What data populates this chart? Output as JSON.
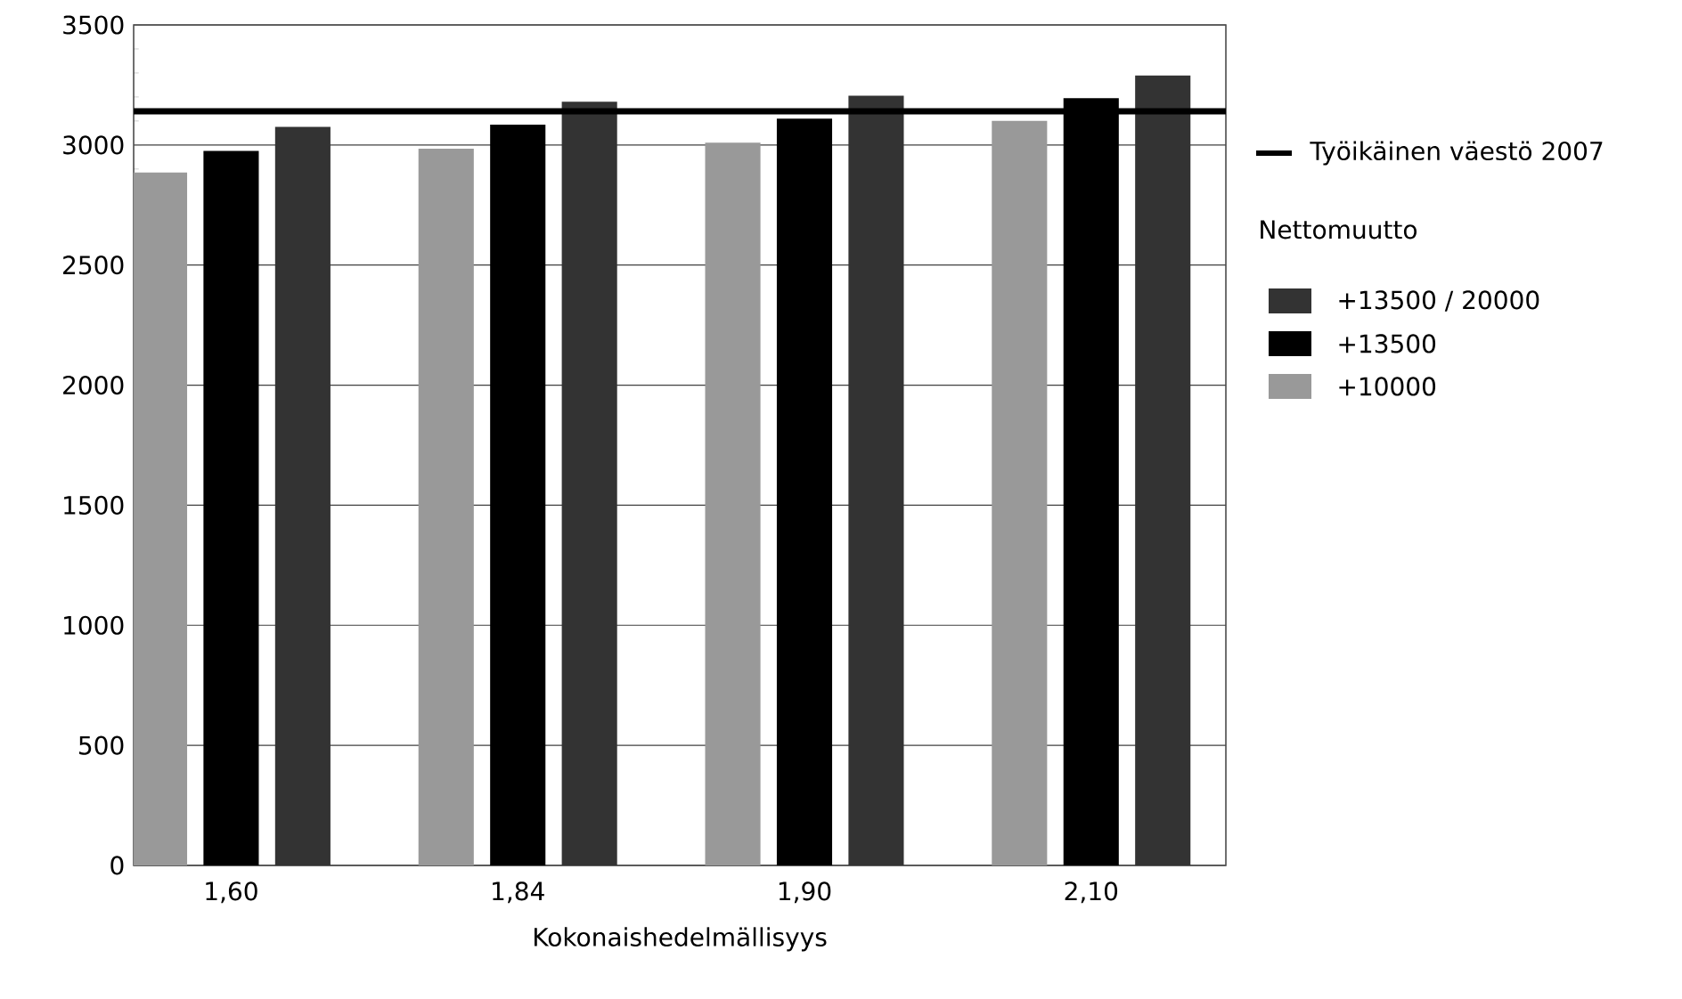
{
  "chart_data": {
    "type": "bar",
    "xlabel": "Kokonaishedelmällisyys",
    "categories": [
      "1,60",
      "1,84",
      "1,90",
      "2,10"
    ],
    "series": [
      {
        "name": "+10000",
        "color": "#999999",
        "values": [
          2885,
          2985,
          3010,
          3100
        ]
      },
      {
        "name": "+13500",
        "color": "#000000",
        "values": [
          2975,
          3085,
          3110,
          3195
        ]
      },
      {
        "name": "+13500 / 20000",
        "color": "#333333",
        "values": [
          3075,
          3180,
          3205,
          3290
        ]
      }
    ],
    "legend_title": "Nettomuutto",
    "ref_lines": [
      {
        "axis": "y",
        "value": 3140,
        "label": "Työikäinen väestö 2007",
        "color": "#000000"
      }
    ],
    "ylim": [
      0,
      3500
    ],
    "yticks": [
      0,
      500,
      1000,
      1500,
      2000,
      2500,
      3000,
      3500
    ],
    "grid": "y",
    "legend": "right"
  }
}
